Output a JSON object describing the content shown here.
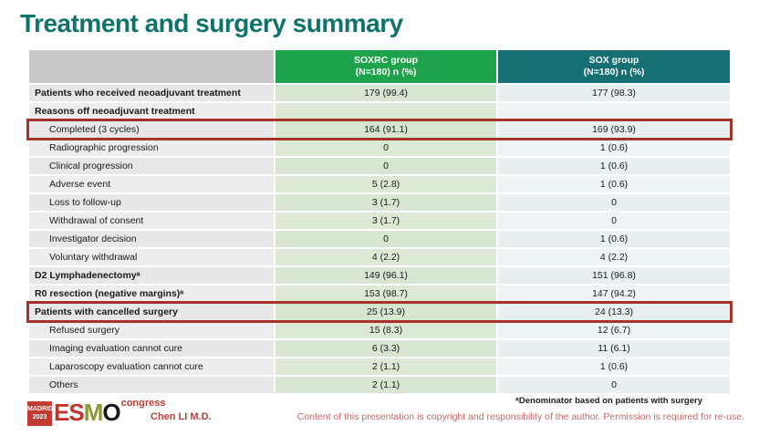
{
  "title": "Treatment and surgery summary",
  "colors": {
    "title_teal": "#0e746a",
    "soxrc_header_green": "#1ea24b",
    "sox_header_teal": "#166f72",
    "highlight_box_red": "#a5332a",
    "logo_red": "#c13b33",
    "logo_olive": "#8c9a36",
    "soxrc_cell_green": "#d7e6d0",
    "sox_cell_blue": "#e8eff1"
  },
  "table": {
    "columns": {
      "soxrc": {
        "line1": "SOXRC group",
        "line2": "(N=180)  n (%)"
      },
      "sox": {
        "line1": "SOX group",
        "line2": "(N=180)  n (%)"
      }
    },
    "rows": [
      {
        "label": "Patients who received neoadjuvant treatment",
        "soxrc": "179 (99.4)",
        "sox": "177 (98.3)",
        "bold": true
      },
      {
        "label": "Reasons off neoadjuvant treatment",
        "soxrc": "",
        "sox": "",
        "bold": true
      },
      {
        "label": "Completed (3 cycles)",
        "soxrc": "164 (91.1)",
        "sox": "169 (93.9)",
        "indent": true,
        "highlight": true
      },
      {
        "label": "Radiographic progression",
        "soxrc": "0",
        "sox": "1 (0.6)",
        "indent": true
      },
      {
        "label": "Clinical progression",
        "soxrc": "0",
        "sox": "1 (0.6)",
        "indent": true
      },
      {
        "label": "Adverse event",
        "soxrc": "5 (2.8)",
        "sox": "1 (0.6)",
        "indent": true
      },
      {
        "label": "Loss to follow-up",
        "soxrc": "3 (1.7)",
        "sox": "0",
        "indent": true
      },
      {
        "label": "Withdrawal of consent",
        "soxrc": "3 (1.7)",
        "sox": "0",
        "indent": true
      },
      {
        "label": "Investigator decision",
        "soxrc": "0",
        "sox": "1 (0.6)",
        "indent": true
      },
      {
        "label": "Voluntary withdrawal",
        "soxrc": "4 (2.2)",
        "sox": "4 (2.2)",
        "indent": true
      },
      {
        "label": "D2 Lymphadenectomyᵃ",
        "soxrc": "149 (96.1)",
        "sox": "151 (96.8)",
        "bold": true
      },
      {
        "label": "R0 resection (negative margins)ᵃ",
        "soxrc": "153 (98.7)",
        "sox": "147 (94.2)",
        "bold": true
      },
      {
        "label": "Patients with cancelled surgery",
        "soxrc": "25 (13.9)",
        "sox": "24 (13.3)",
        "bold": true,
        "highlight": true
      },
      {
        "label": "Refused surgery",
        "soxrc": "15 (8.3)",
        "sox": "12 (6.7)",
        "indent": true
      },
      {
        "label": "Imaging evaluation cannot cure",
        "soxrc": "6 (3.3)",
        "sox": "11 (6.1)",
        "indent": true
      },
      {
        "label": "Laparoscopy evaluation cannot cure",
        "soxrc": "2 (1.1)",
        "sox": "1 (0.6)",
        "indent": true
      },
      {
        "label": "Others",
        "soxrc": "2 (1.1)",
        "sox": "0",
        "indent": true
      }
    ]
  },
  "footer": {
    "logo": {
      "venue": "MADRID",
      "year": "2023",
      "letter_e": "E",
      "letter_s": "S",
      "letter_m": "M",
      "letter_o": "O",
      "congress": "congress"
    },
    "presenter": "Chen LI M.D.",
    "footnote": "ᵃDenominator based on patients with surgery",
    "copyright": "Content of this presentation is copyright and responsibility of the author. Permission is required for re-use."
  }
}
